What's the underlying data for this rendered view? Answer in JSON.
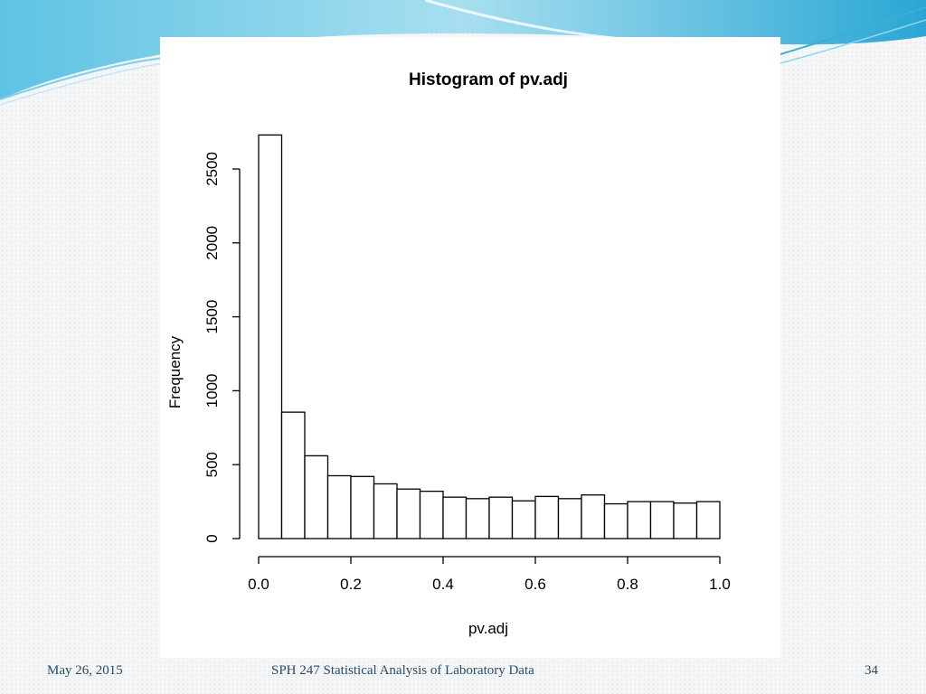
{
  "footer": {
    "date": "May 26, 2015",
    "title": "SPH 247 Statistical Analysis of Laboratory Data",
    "page_number": "34"
  },
  "colors": {
    "header_light": "#a8dff0",
    "header_mid": "#5ec3e3",
    "header_dark": "#2aa6d4",
    "footer_text": "#2b4a63",
    "bar_fill": "#ffffff",
    "bar_stroke": "#000000"
  },
  "chart_data": {
    "type": "bar",
    "title": "Histogram of pv.adj",
    "xlabel": "pv.adj",
    "ylabel": "Frequency",
    "bin_width": 0.05,
    "bins_start": [
      0.0,
      0.05,
      0.1,
      0.15,
      0.2,
      0.25,
      0.3,
      0.35,
      0.4,
      0.45,
      0.5,
      0.55,
      0.6,
      0.65,
      0.7,
      0.75,
      0.8,
      0.85,
      0.9,
      0.95
    ],
    "values": [
      2730,
      855,
      560,
      425,
      420,
      370,
      335,
      320,
      280,
      270,
      280,
      255,
      285,
      270,
      295,
      235,
      250,
      250,
      240,
      250
    ],
    "xlim": [
      0,
      1
    ],
    "ylim": [
      0,
      2500
    ],
    "x_ticks": [
      0,
      0.2,
      0.4,
      0.6,
      0.8,
      1
    ],
    "x_tick_labels": [
      "0.0",
      "0.2",
      "0.4",
      "0.6",
      "0.8",
      "1.0"
    ],
    "y_ticks": [
      0,
      500,
      1000,
      1500,
      2000,
      2500
    ],
    "y_tick_labels": [
      "0",
      "500",
      "1000",
      "1500",
      "2000",
      "2500"
    ],
    "grid": false
  }
}
